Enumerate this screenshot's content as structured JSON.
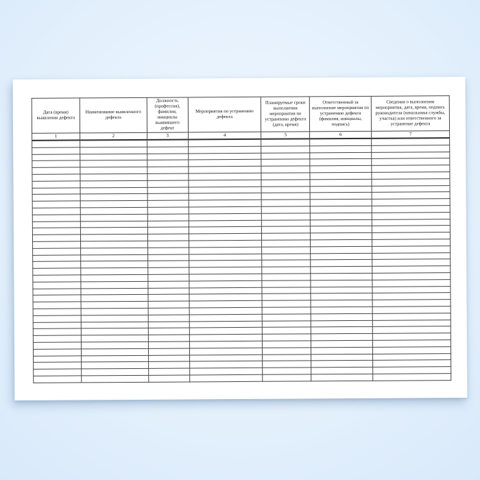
{
  "document": {
    "kind": "defect-log-form",
    "language": "ru",
    "columns": [
      {
        "number": "1",
        "label": "Дата (время) выявления дефекта"
      },
      {
        "number": "2",
        "label": "Наименование выявленного дефекта"
      },
      {
        "number": "3",
        "label": "Должность (профессия), фамилия, инициалы выявившего дефект"
      },
      {
        "number": "4",
        "label": "Мероприятия по устранению дефекта"
      },
      {
        "number": "5",
        "label": "Планируемые сроки выполнения мероприятия по устранению дефекта (дата, время)"
      },
      {
        "number": "6",
        "label": "Ответственный за выполнение мероприятия по устранению дефекта (фамилия, инициалы, подпись)"
      },
      {
        "number": "7",
        "label": "Сведения о выполнении мероприятия, дата, время, подпись руководителя (начальника службы, участка) или ответственного за устранение дефекта"
      }
    ],
    "body_rows": 36,
    "body_cells_empty": true
  },
  "colors": {
    "page": "#ffffff",
    "table_border": "#434343",
    "outer_border": "#2e2e2e",
    "text": "#111111",
    "background_center": "#f2f8ff",
    "background_edge": "#c6dbf2"
  }
}
